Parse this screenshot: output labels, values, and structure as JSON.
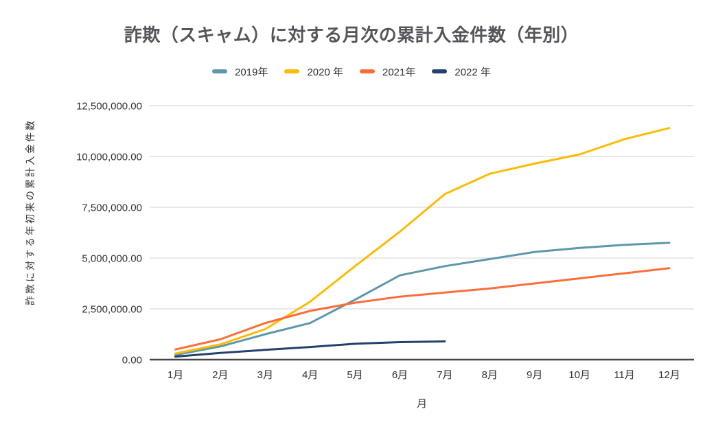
{
  "chart_data": {
    "type": "line",
    "title": "詐欺（スキャム）に対する月次の累計入金件数（年別）",
    "xlabel": "月",
    "ylabel": "詐欺に対する年初来の累計入金件数",
    "categories": [
      "1月",
      "2月",
      "3月",
      "4月",
      "5月",
      "6月",
      "7月",
      "8月",
      "9月",
      "10月",
      "11月",
      "12月"
    ],
    "yticks": [
      0,
      2500000,
      5000000,
      7500000,
      10000000,
      12500000
    ],
    "ylim": [
      0,
      12500000
    ],
    "y_tick_format": "#,##0.00",
    "grid": "horizontal",
    "legend_position": "top",
    "series": [
      {
        "year": "2019",
        "name": "2019年",
        "color": "#5C97AC",
        "values": [
          230000,
          650000,
          1250000,
          1800000,
          2950000,
          4150000,
          4600000,
          4950000,
          5300000,
          5500000,
          5650000,
          5750000
        ]
      },
      {
        "year": "2020",
        "name": "2020 年",
        "color": "#FBBC04",
        "values": [
          300000,
          750000,
          1500000,
          2850000,
          4600000,
          6300000,
          8150000,
          9150000,
          9650000,
          10100000,
          10850000,
          11400000
        ]
      },
      {
        "year": "2021",
        "name": "2021年",
        "color": "#FC6D3A",
        "values": [
          500000,
          1000000,
          1800000,
          2400000,
          2800000,
          3100000,
          3300000,
          3500000,
          3750000,
          4000000,
          4250000,
          4500000
        ]
      },
      {
        "year": "2022",
        "name": "2022 年",
        "color": "#24406E",
        "values": [
          150000,
          330000,
          480000,
          620000,
          780000,
          860000,
          900000,
          null,
          null,
          null,
          null,
          null
        ]
      }
    ]
  },
  "style": {
    "background": "#ffffff",
    "gridline_color": "#e0e0e0",
    "axis_line_color": "#454545",
    "title_color": "#54565b",
    "tick_label_color": "#2e2f31"
  }
}
